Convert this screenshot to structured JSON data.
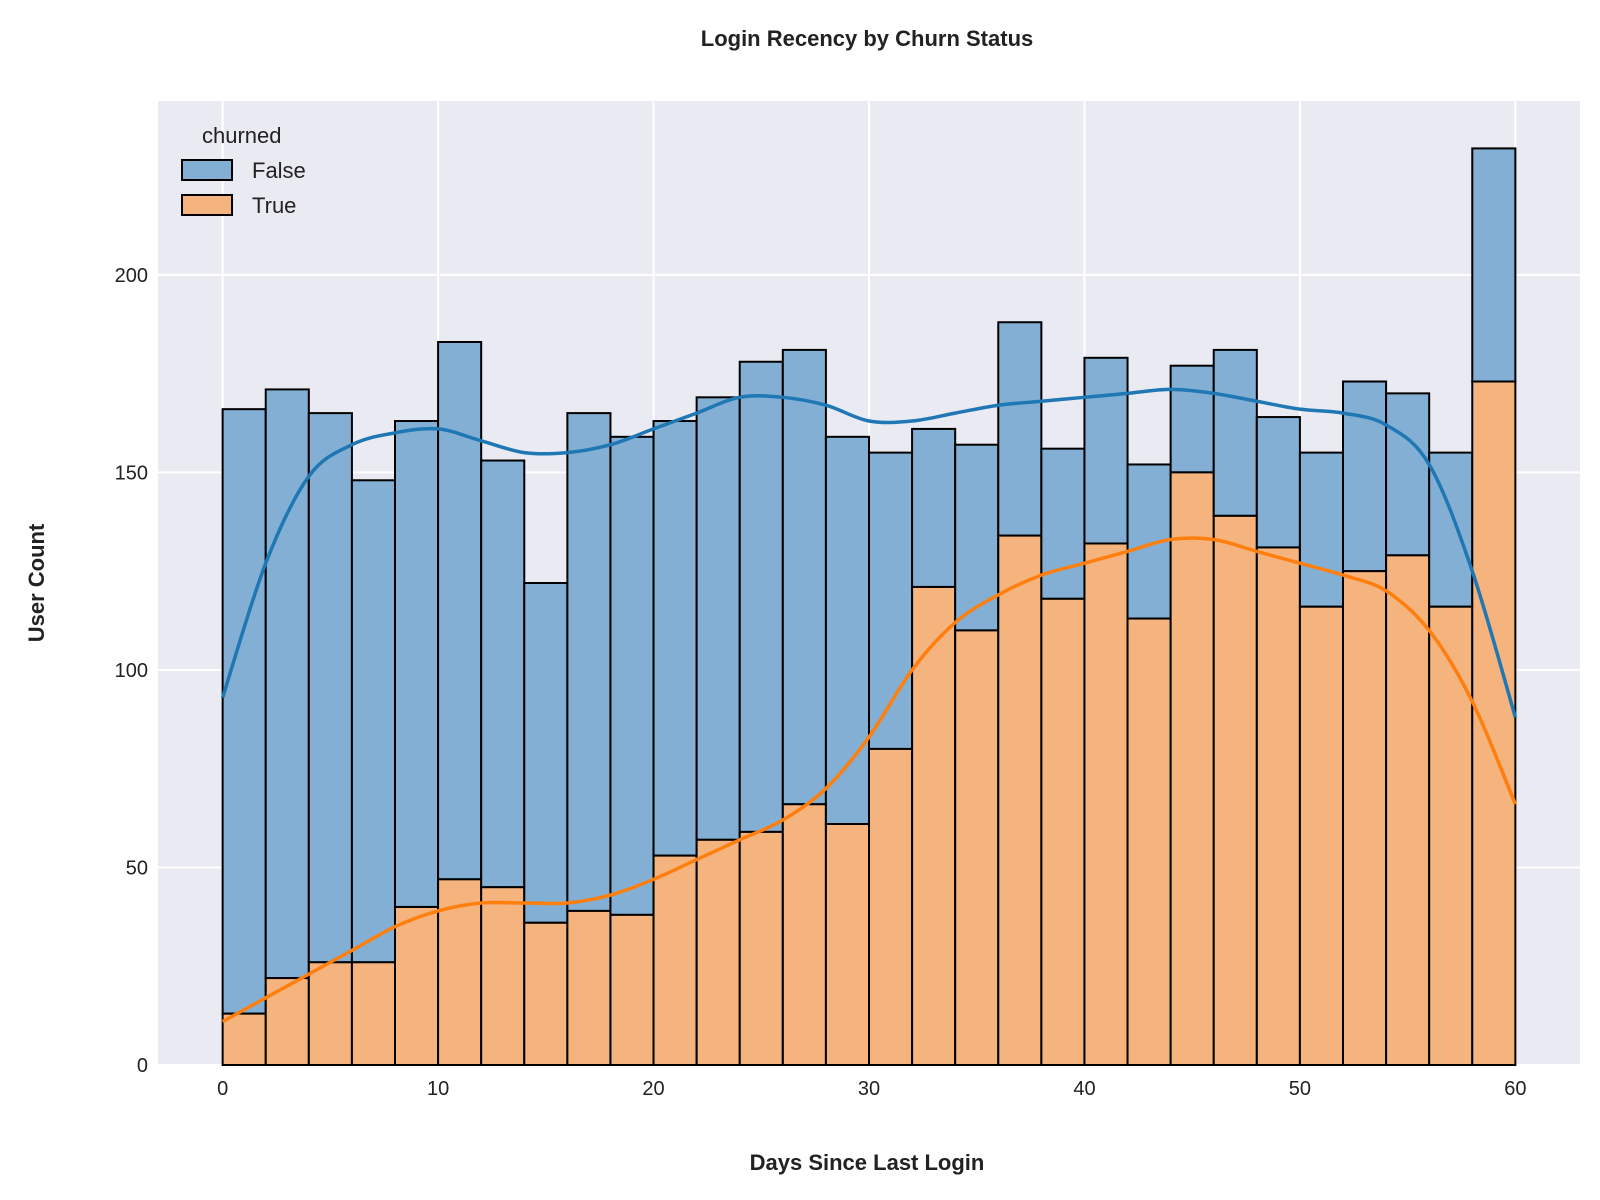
{
  "chart_data": {
    "type": "bar",
    "title": "Login Recency by Churn Status",
    "xlabel": "Days Since Last Login",
    "ylabel": "User Count",
    "xlim": [
      -3,
      63
    ],
    "ylim": [
      0,
      244
    ],
    "xticks": [
      0,
      10,
      20,
      30,
      40,
      50,
      60
    ],
    "yticks": [
      0,
      50,
      100,
      150,
      200
    ],
    "stacked": true,
    "bin_edges": [
      0,
      2,
      4,
      6,
      8,
      10,
      12,
      14,
      16,
      18,
      20,
      22,
      24,
      26,
      28,
      30,
      32,
      34,
      36,
      38,
      40,
      42,
      44,
      46,
      48,
      50,
      52,
      54,
      56,
      58,
      60
    ],
    "legend": {
      "title": "churned",
      "position": "top-left"
    },
    "grid": true,
    "series": [
      {
        "name": "True",
        "color": "#f5b37d",
        "kde_color": "#ff7f0e",
        "values": [
          13,
          22,
          26,
          26,
          40,
          47,
          45,
          36,
          39,
          38,
          53,
          57,
          59,
          66,
          61,
          80,
          121,
          110,
          134,
          118,
          132,
          113,
          150,
          139,
          131,
          116,
          125,
          129,
          116,
          173
        ],
        "kde": [
          [
            0,
            11
          ],
          [
            2,
            17
          ],
          [
            4,
            23
          ],
          [
            6,
            29
          ],
          [
            8,
            35
          ],
          [
            10,
            39
          ],
          [
            12,
            41
          ],
          [
            14,
            41
          ],
          [
            16,
            41
          ],
          [
            18,
            43
          ],
          [
            20,
            47
          ],
          [
            22,
            52
          ],
          [
            24,
            57
          ],
          [
            26,
            62
          ],
          [
            28,
            70
          ],
          [
            30,
            83
          ],
          [
            32,
            100
          ],
          [
            34,
            112
          ],
          [
            36,
            119
          ],
          [
            38,
            124
          ],
          [
            40,
            127
          ],
          [
            42,
            130
          ],
          [
            44,
            133
          ],
          [
            46,
            133
          ],
          [
            48,
            130
          ],
          [
            50,
            127
          ],
          [
            52,
            124
          ],
          [
            54,
            120
          ],
          [
            56,
            110
          ],
          [
            58,
            92
          ],
          [
            60,
            66
          ]
        ]
      },
      {
        "name": "False",
        "color": "#82afd3",
        "kde_color": "#1f77b4",
        "totals": [
          166,
          171,
          165,
          148,
          163,
          183,
          153,
          122,
          165,
          159,
          163,
          169,
          178,
          181,
          159,
          155,
          161,
          157,
          188,
          156,
          179,
          152,
          177,
          181,
          164,
          155,
          173,
          170,
          155,
          232
        ],
        "kde": [
          [
            0,
            93
          ],
          [
            2,
            127
          ],
          [
            4,
            149
          ],
          [
            6,
            157
          ],
          [
            8,
            160
          ],
          [
            10,
            161
          ],
          [
            12,
            158
          ],
          [
            14,
            155
          ],
          [
            16,
            155
          ],
          [
            18,
            157
          ],
          [
            20,
            161
          ],
          [
            22,
            165
          ],
          [
            24,
            169
          ],
          [
            26,
            169
          ],
          [
            28,
            167
          ],
          [
            30,
            163
          ],
          [
            32,
            163
          ],
          [
            34,
            165
          ],
          [
            36,
            167
          ],
          [
            38,
            168
          ],
          [
            40,
            169
          ],
          [
            42,
            170
          ],
          [
            44,
            171
          ],
          [
            46,
            170
          ],
          [
            48,
            168
          ],
          [
            50,
            166
          ],
          [
            52,
            165
          ],
          [
            54,
            162
          ],
          [
            56,
            152
          ],
          [
            58,
            125
          ],
          [
            60,
            88
          ]
        ]
      }
    ]
  }
}
